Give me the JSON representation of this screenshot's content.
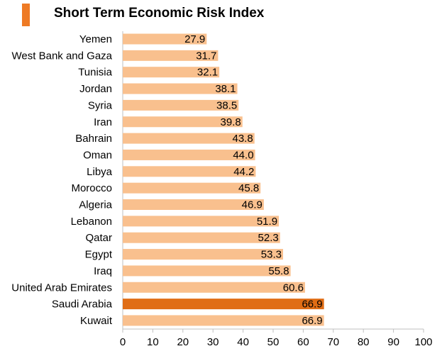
{
  "chart_data": {
    "type": "bar",
    "orientation": "horizontal",
    "title": "Short Term Economic Risk Index",
    "categories": [
      "Yemen",
      "West Bank and Gaza",
      "Tunisia",
      "Jordan",
      "Syria",
      "Iran",
      "Bahrain",
      "Oman",
      "Libya",
      "Morocco",
      "Algeria",
      "Lebanon",
      "Qatar",
      "Egypt",
      "Iraq",
      "United Arab Emirates",
      "Saudi Arabia",
      "Kuwait"
    ],
    "values": [
      27.9,
      31.7,
      32.1,
      38.1,
      38.5,
      39.8,
      43.8,
      44.0,
      44.2,
      45.8,
      46.9,
      51.9,
      52.3,
      53.3,
      55.8,
      60.6,
      66.9,
      66.9
    ],
    "value_labels": [
      "27.9",
      "31.7",
      "32.1",
      "38.1",
      "38.5",
      "39.8",
      "43.8",
      "44.0",
      "44.2",
      "45.8",
      "46.9",
      "51.9",
      "52.3",
      "53.3",
      "55.8",
      "60.6",
      "66.9",
      "66.9"
    ],
    "highlight": "Saudi Arabia",
    "xlim": [
      0,
      100
    ],
    "xticks": [
      "0",
      "10",
      "20",
      "30",
      "40",
      "50",
      "60",
      "70",
      "80",
      "90",
      "100"
    ],
    "grid": false,
    "xlabel": "",
    "ylabel": ""
  },
  "colors": {
    "bar": "#f9c08e",
    "highlight": "#e06d15",
    "accent": "#ee7a24",
    "axis": "#bfbfbf"
  }
}
